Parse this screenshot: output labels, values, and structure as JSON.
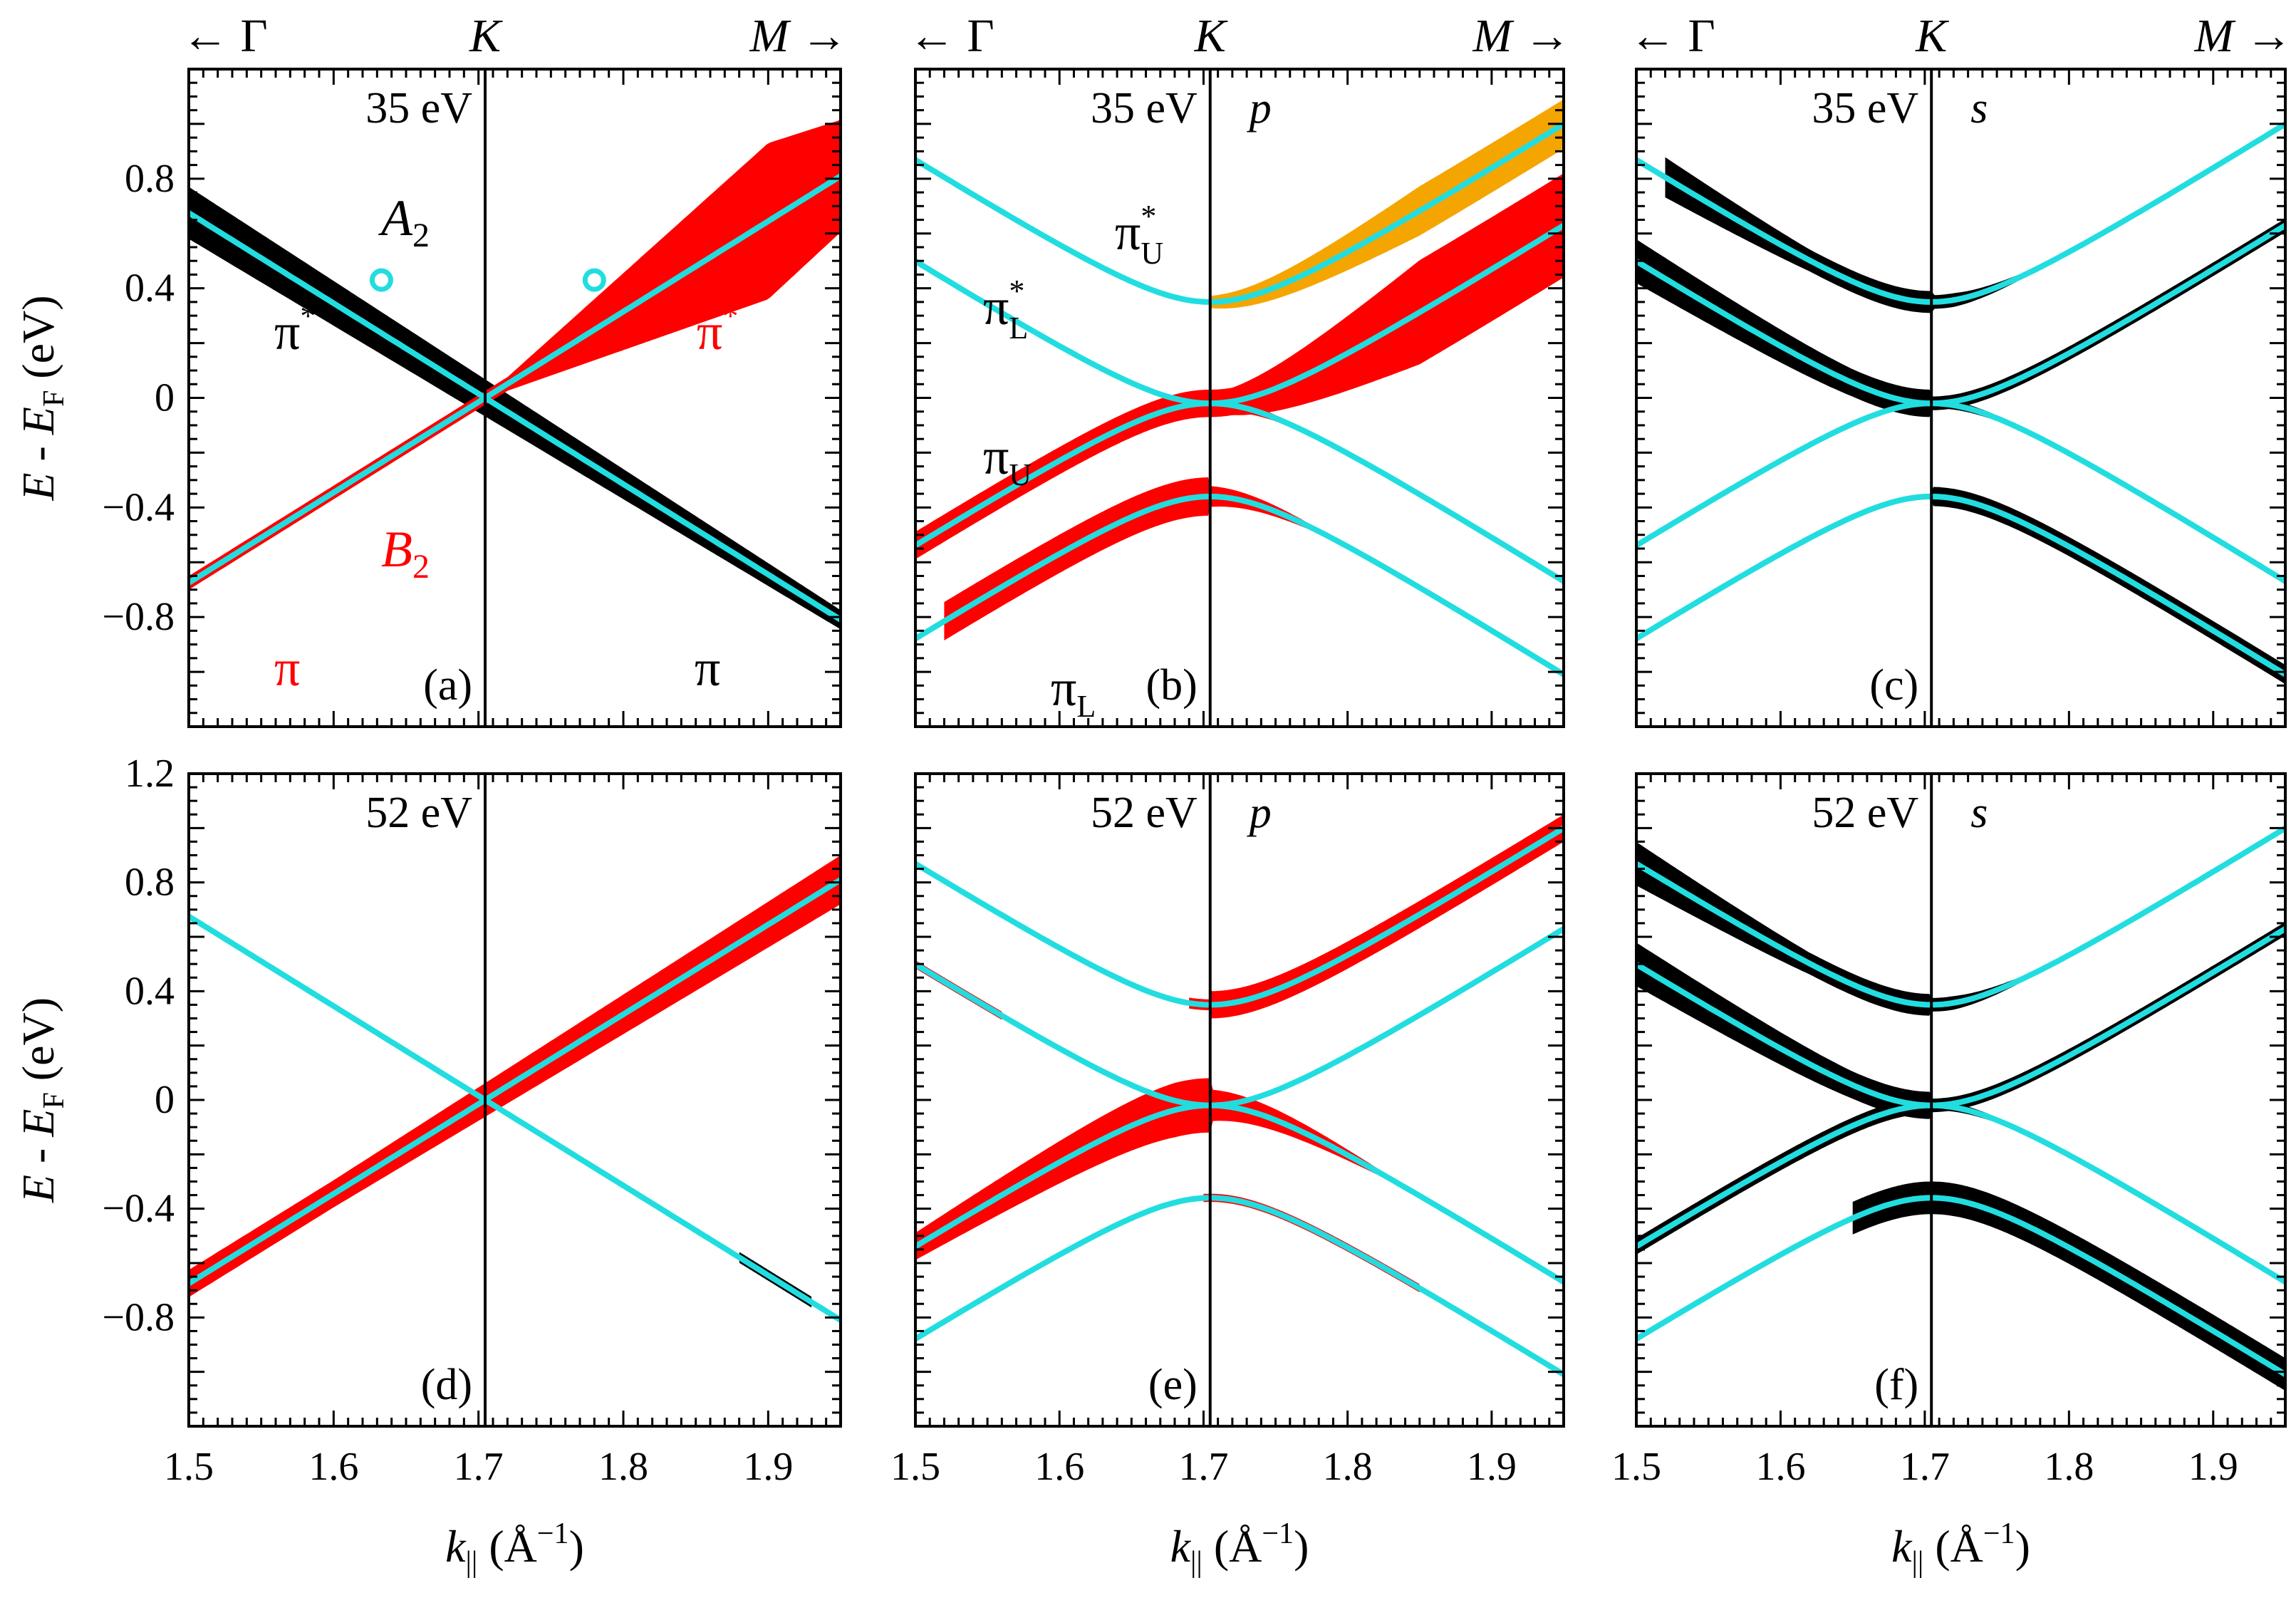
{
  "chart_data": {
    "type": "line",
    "layout": "2x3 grid of band-structure panels",
    "x_range": [
      1.5,
      1.95
    ],
    "y_range": [
      -1.2,
      1.2
    ],
    "x_ticks": [
      "1.5",
      "1.6",
      "1.7",
      "1.8",
      "1.9"
    ],
    "y_ticks_top": [
      "0.8",
      "0.4",
      "0",
      "−0.4",
      "−0.8"
    ],
    "y_ticks_bottom": [
      "1.2",
      "0.8",
      "0.4",
      "0",
      "−0.4",
      "−0.8"
    ],
    "xlabel": {
      "main": "k",
      "sub": "||",
      "unit_open": " (Å",
      "sup": "−1",
      "unit_close": ")"
    },
    "ylabel": {
      "main": "E",
      "minus": " - ",
      "e2": "E",
      "sub": "F",
      "unit": " (eV)"
    },
    "direction_labels": {
      "left": "← Γ",
      "center": "K",
      "right": "M →"
    },
    "k_point": 1.7046,
    "colors": {
      "cyan": "#22dde0",
      "red": "#ff0000",
      "black": "#000000",
      "orange": "#f5a500"
    },
    "panels": [
      {
        "id": "a",
        "label": "(a)",
        "energy": "35 eV",
        "pol": ""
      },
      {
        "id": "b",
        "label": "(b)",
        "energy": "35 eV",
        "pol": "p"
      },
      {
        "id": "c",
        "label": "(c)",
        "energy": "35 eV",
        "pol": "s"
      },
      {
        "id": "d",
        "label": "(d)",
        "energy": "52 eV",
        "pol": ""
      },
      {
        "id": "e",
        "label": "(e)",
        "energy": "52 eV",
        "pol": "p"
      },
      {
        "id": "f",
        "label": "(f)",
        "energy": "52 eV",
        "pol": "s"
      }
    ],
    "annotations": {
      "A2": {
        "main": "A",
        "sub": "2"
      },
      "B2": {
        "main": "B",
        "sub": "2"
      },
      "pi_star_black": {
        "main": "π",
        "sup": "*"
      },
      "pi_star_red": {
        "main": "π",
        "sup": "*"
      },
      "pi_red": "π",
      "pi_black": "π",
      "pi_star_U": {
        "main": "π",
        "sup": "*",
        "sub": "U"
      },
      "pi_star_L": {
        "main": "π",
        "sup": "*",
        "sub": "L"
      },
      "pi_U": {
        "main": "π",
        "sub": "U"
      },
      "pi_L": {
        "main": "π",
        "sub": "L"
      }
    },
    "markers": [
      {
        "panel": "a",
        "x": 1.633,
        "y": 0.43
      },
      {
        "panel": "a",
        "x": 1.78,
        "y": 0.43
      }
    ],
    "curves": {
      "single": {
        "description": "monolayer Dirac bands crossing at K, E = 0",
        "slope_lower": 3.25,
        "gap": 0.0
      },
      "bilayer_bands": [
        "pi_L",
        "pi_U",
        "pi*_L",
        "pi*_U"
      ],
      "bilayer_params": {
        "v": 3.3,
        "t1": 0.36,
        "delta_k_eV": 0.02
      }
    }
  }
}
